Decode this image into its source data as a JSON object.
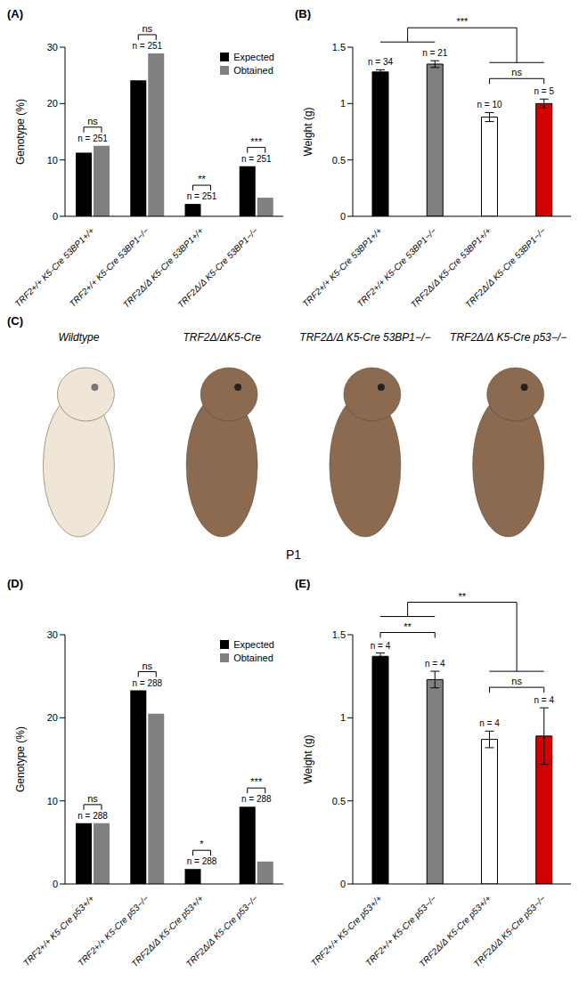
{
  "chart_data": [
    {
      "panel": "(A)",
      "type": "bar",
      "categories": [
        "TRF2+/+ K5-Cre 53BP1+/+",
        "TRF2+/+ K5-Cre 53BP1−/−",
        "TRF2Δ/Δ K5-Cre 53BP1+/+",
        "TRF2Δ/Δ K5-Cre 53BP1−/−"
      ],
      "series": [
        {
          "name": "Expected",
          "color": "#000000",
          "values": [
            11.3,
            24.1,
            2.2,
            8.9
          ]
        },
        {
          "name": "Obtained",
          "color": "#808080",
          "values": [
            12.5,
            28.9,
            0,
            3.3
          ]
        }
      ],
      "y_label": "Genotype (%)",
      "ylim": [
        0,
        30
      ],
      "yticks": [
        0,
        10,
        20,
        30
      ],
      "legend": "upper right",
      "grid": false,
      "significance": [
        "ns",
        "ns",
        "**",
        "***"
      ],
      "n_labels": [
        "n = 251",
        "n = 251",
        "n = 251",
        "n = 251"
      ]
    },
    {
      "panel": "(B)",
      "type": "bar",
      "categories": [
        "TRF2+/+ K5-Cre 53BP1+/+",
        "TRF2+/+ K5-Cre 53BP1−/−",
        "TRF2Δ/Δ K5-Cre 53BP1+/+",
        "TRF2Δ/Δ K5-Cre 53BP1−/−"
      ],
      "values": [
        1.28,
        1.35,
        0.88,
        1.0
      ],
      "errors": [
        0.02,
        0.03,
        0.04,
        0.04
      ],
      "colors": [
        "#000000",
        "#808080",
        "#ffffff",
        "#d40000"
      ],
      "y_label": "Weight (g)",
      "ylim": [
        0,
        1.5
      ],
      "yticks": [
        0,
        0.5,
        1,
        1.5
      ],
      "grid": false,
      "n_labels": [
        "n = 34",
        "n = 21",
        "n = 10",
        "n = 5"
      ],
      "annotations": [
        {
          "text": "ns",
          "between": [
            "TRF2Δ/Δ K5-Cre 53BP1+/+",
            "TRF2Δ/Δ K5-Cre 53BP1−/−"
          ]
        },
        {
          "text": "***",
          "between": [
            [
              "TRF2+/+ K5-Cre 53BP1+/+",
              "TRF2+/+ K5-Cre 53BP1−/−"
            ],
            [
              "TRF2Δ/Δ K5-Cre 53BP1+/+",
              "TRF2Δ/Δ K5-Cre 53BP1−/−"
            ]
          ]
        }
      ]
    },
    {
      "panel": "(C)",
      "type": "image",
      "labels": [
        "Wildtype",
        "TRF2Δ/ΔK5-Cre",
        "TRF2Δ/Δ K5-Cre 53BP1−/−",
        "TRF2Δ/Δ K5-Cre p53−/−"
      ],
      "annotation": "P1"
    },
    {
      "panel": "(D)",
      "type": "bar",
      "categories": [
        "TRF2+/+ K5-Cre p53+/+",
        "TRF2+/+ K5-Cre p53−/−",
        "TRF2Δ/Δ K5-Cre p53+/+",
        "TRF2Δ/Δ K5-Cre p53−/−"
      ],
      "series": [
        {
          "name": "Expected",
          "color": "#000000",
          "values": [
            7.3,
            23.3,
            1.8,
            9.3
          ]
        },
        {
          "name": "Obtained",
          "color": "#808080",
          "values": [
            7.3,
            20.5,
            0,
            2.7
          ]
        }
      ],
      "y_label": "Genotype (%)",
      "ylim": [
        0,
        30
      ],
      "yticks": [
        0,
        10,
        20,
        30
      ],
      "legend": "upper right",
      "grid": false,
      "significance": [
        "ns",
        "ns",
        "*",
        "***"
      ],
      "n_labels": [
        "n = 288",
        "n = 288",
        "n = 288",
        "n = 288"
      ]
    },
    {
      "panel": "(E)",
      "type": "bar",
      "categories": [
        "TRF2+/+ K5-Cre p53+/+",
        "TRF2+/+ K5-Cre p53−/−",
        "TRF2Δ/Δ K5-Cre p53+/+",
        "TRF2Δ/Δ K5-Cre p53−/−"
      ],
      "values": [
        1.37,
        1.23,
        0.87,
        0.89
      ],
      "errors": [
        0.02,
        0.05,
        0.05,
        0.17
      ],
      "colors": [
        "#000000",
        "#808080",
        "#ffffff",
        "#d40000"
      ],
      "y_label": "Weight (g)",
      "ylim": [
        0,
        1.5
      ],
      "yticks": [
        0,
        0.5,
        1,
        1.5
      ],
      "grid": false,
      "n_labels": [
        "n = 4",
        "n = 4",
        "n = 4",
        "n = 4"
      ],
      "annotations": [
        {
          "text": "**",
          "between": [
            "TRF2+/+ K5-Cre p53+/+",
            "TRF2+/+ K5-Cre p53−/−"
          ]
        },
        {
          "text": "ns",
          "between": [
            "TRF2Δ/Δ K5-Cre p53+/+",
            "TRF2Δ/Δ K5-Cre p53−/−"
          ]
        },
        {
          "text": "**",
          "between": [
            [
              "TRF2+/+ K5-Cre p53+/+",
              "TRF2+/+ K5-Cre p53−/−"
            ],
            [
              "TRF2Δ/Δ K5-Cre p53+/+",
              "TRF2Δ/Δ K5-Cre p53−/−"
            ]
          ]
        }
      ]
    }
  ]
}
